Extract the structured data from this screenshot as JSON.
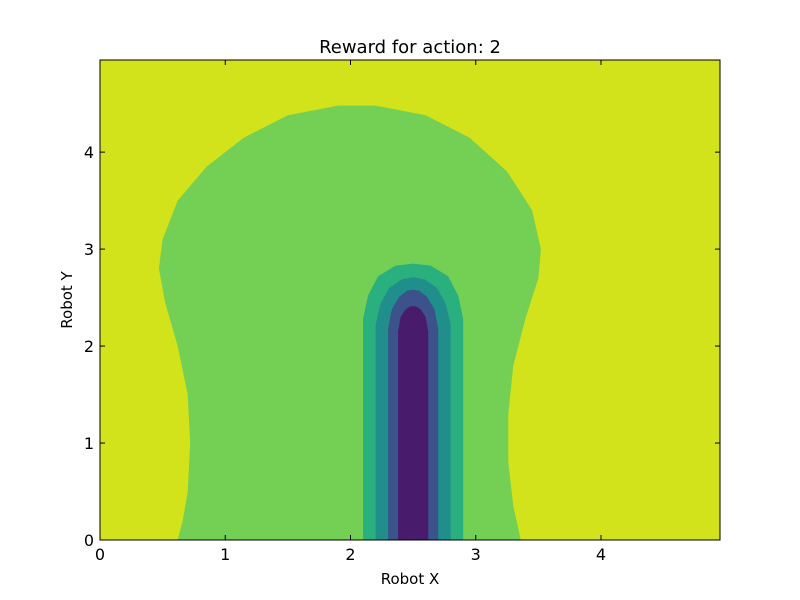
{
  "chart_data": {
    "type": "heatmap",
    "subtype": "filled-contour",
    "title": "Reward for action: 2",
    "xlabel": "Robot X",
    "ylabel": "Robot Y",
    "xlim": [
      0,
      4.95
    ],
    "ylim": [
      0,
      4.95
    ],
    "x_ticks": [
      0,
      1,
      2,
      3,
      4
    ],
    "y_ticks": [
      0,
      1,
      2,
      3,
      4
    ],
    "x_tick_labels": [
      "0",
      "1",
      "2",
      "3",
      "4"
    ],
    "y_tick_labels": [
      "0",
      "1",
      "2",
      "3",
      "4"
    ],
    "grid": false,
    "colormap": "viridis",
    "colors": {
      "background_level": "#d2e21b",
      "outer_level": "#73d055",
      "level_3": "#2aaf7f",
      "level_2": "#208f8c",
      "level_1": "#3b528b",
      "center_level": "#481b6d"
    },
    "regions": [
      {
        "name": "outer-region",
        "color_key": "outer_level",
        "points": [
          [
            0.62,
            0
          ],
          [
            0.66,
            0.2
          ],
          [
            0.7,
            0.5
          ],
          [
            0.72,
            1.0
          ],
          [
            0.7,
            1.5
          ],
          [
            0.62,
            2.0
          ],
          [
            0.52,
            2.45
          ],
          [
            0.47,
            2.8
          ],
          [
            0.5,
            3.1
          ],
          [
            0.62,
            3.5
          ],
          [
            0.85,
            3.85
          ],
          [
            1.15,
            4.15
          ],
          [
            1.5,
            4.38
          ],
          [
            1.9,
            4.48
          ],
          [
            2.2,
            4.48
          ],
          [
            2.6,
            4.38
          ],
          [
            2.95,
            4.15
          ],
          [
            3.25,
            3.8
          ],
          [
            3.45,
            3.4
          ],
          [
            3.52,
            3.0
          ],
          [
            3.5,
            2.7
          ],
          [
            3.4,
            2.3
          ],
          [
            3.3,
            1.8
          ],
          [
            3.26,
            1.3
          ],
          [
            3.26,
            0.8
          ],
          [
            3.3,
            0.35
          ],
          [
            3.36,
            0
          ]
        ]
      },
      {
        "name": "level-3-region",
        "color_key": "level_3",
        "points": [
          [
            2.1,
            0
          ],
          [
            2.1,
            2.28
          ],
          [
            2.14,
            2.52
          ],
          [
            2.22,
            2.72
          ],
          [
            2.36,
            2.83
          ],
          [
            2.5,
            2.85
          ],
          [
            2.64,
            2.83
          ],
          [
            2.78,
            2.72
          ],
          [
            2.86,
            2.52
          ],
          [
            2.9,
            2.28
          ],
          [
            2.9,
            0
          ]
        ]
      },
      {
        "name": "level-2-region",
        "color_key": "level_2",
        "points": [
          [
            2.2,
            0
          ],
          [
            2.2,
            2.22
          ],
          [
            2.24,
            2.44
          ],
          [
            2.31,
            2.6
          ],
          [
            2.41,
            2.69
          ],
          [
            2.5,
            2.71
          ],
          [
            2.59,
            2.69
          ],
          [
            2.69,
            2.6
          ],
          [
            2.76,
            2.44
          ],
          [
            2.8,
            2.22
          ],
          [
            2.8,
            0
          ]
        ]
      },
      {
        "name": "level-1-region",
        "color_key": "level_1",
        "points": [
          [
            2.3,
            0
          ],
          [
            2.3,
            2.18
          ],
          [
            2.33,
            2.38
          ],
          [
            2.39,
            2.51
          ],
          [
            2.45,
            2.57
          ],
          [
            2.5,
            2.58
          ],
          [
            2.55,
            2.57
          ],
          [
            2.61,
            2.51
          ],
          [
            2.67,
            2.38
          ],
          [
            2.7,
            2.18
          ],
          [
            2.7,
            0
          ]
        ]
      },
      {
        "name": "center-region",
        "color_key": "center_level",
        "points": [
          [
            2.38,
            0
          ],
          [
            2.38,
            2.15
          ],
          [
            2.4,
            2.3
          ],
          [
            2.44,
            2.38
          ],
          [
            2.48,
            2.41
          ],
          [
            2.52,
            2.41
          ],
          [
            2.56,
            2.38
          ],
          [
            2.6,
            2.3
          ],
          [
            2.62,
            2.15
          ],
          [
            2.62,
            0
          ]
        ]
      }
    ]
  }
}
